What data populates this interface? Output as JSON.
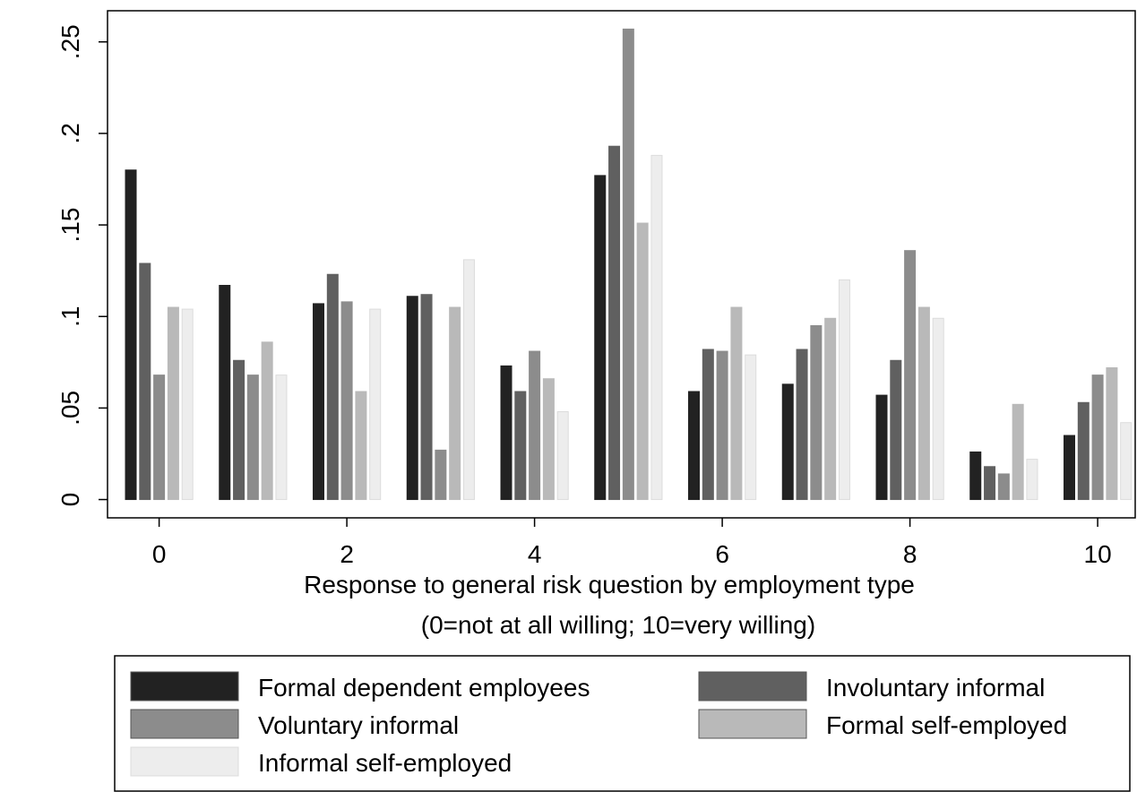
{
  "chart_data": {
    "type": "bar",
    "xlabel": [
      "Response to general risk question by employment type",
      "(0=not at all willing; 10=very willing)"
    ],
    "x": [
      0,
      1,
      2,
      3,
      4,
      5,
      6,
      7,
      8,
      9,
      10
    ],
    "xlim": [
      -0.55,
      10.4
    ],
    "xticks": [
      0,
      2,
      4,
      6,
      8,
      10
    ],
    "ylim": [
      -0.01,
      0.267
    ],
    "yticks": [
      0,
      {
        "value": 0.05,
        "label": ".05"
      },
      {
        "value": 0.1,
        "label": ".1"
      },
      {
        "value": 0.15,
        "label": ".15"
      },
      {
        "value": 0.2,
        "label": ".2"
      },
      {
        "value": 0.25,
        "label": ".25"
      }
    ],
    "series": [
      {
        "name": "Formal dependent employees",
        "color": "#222222",
        "values": [
          0.18,
          0.117,
          0.107,
          0.111,
          0.073,
          0.177,
          0.059,
          0.063,
          0.057,
          0.026,
          0.035
        ]
      },
      {
        "name": "Involuntary informal",
        "color": "#606060",
        "values": [
          0.129,
          0.076,
          0.123,
          0.112,
          0.059,
          0.193,
          0.082,
          0.082,
          0.076,
          0.018,
          0.053
        ]
      },
      {
        "name": "Voluntary informal",
        "color": "#8c8c8c",
        "values": [
          0.068,
          0.068,
          0.108,
          0.027,
          0.081,
          0.257,
          0.081,
          0.095,
          0.136,
          0.014,
          0.068
        ]
      },
      {
        "name": "Formal self-employed",
        "color": "#b9b9b9",
        "values": [
          0.105,
          0.086,
          0.059,
          0.105,
          0.066,
          0.151,
          0.105,
          0.099,
          0.105,
          0.052,
          0.072
        ]
      },
      {
        "name": "Informal self-employed",
        "color": "#ededed",
        "values": [
          0.104,
          0.068,
          0.104,
          0.131,
          0.048,
          0.188,
          0.079,
          0.12,
          0.099,
          0.022,
          0.042
        ]
      }
    ]
  }
}
